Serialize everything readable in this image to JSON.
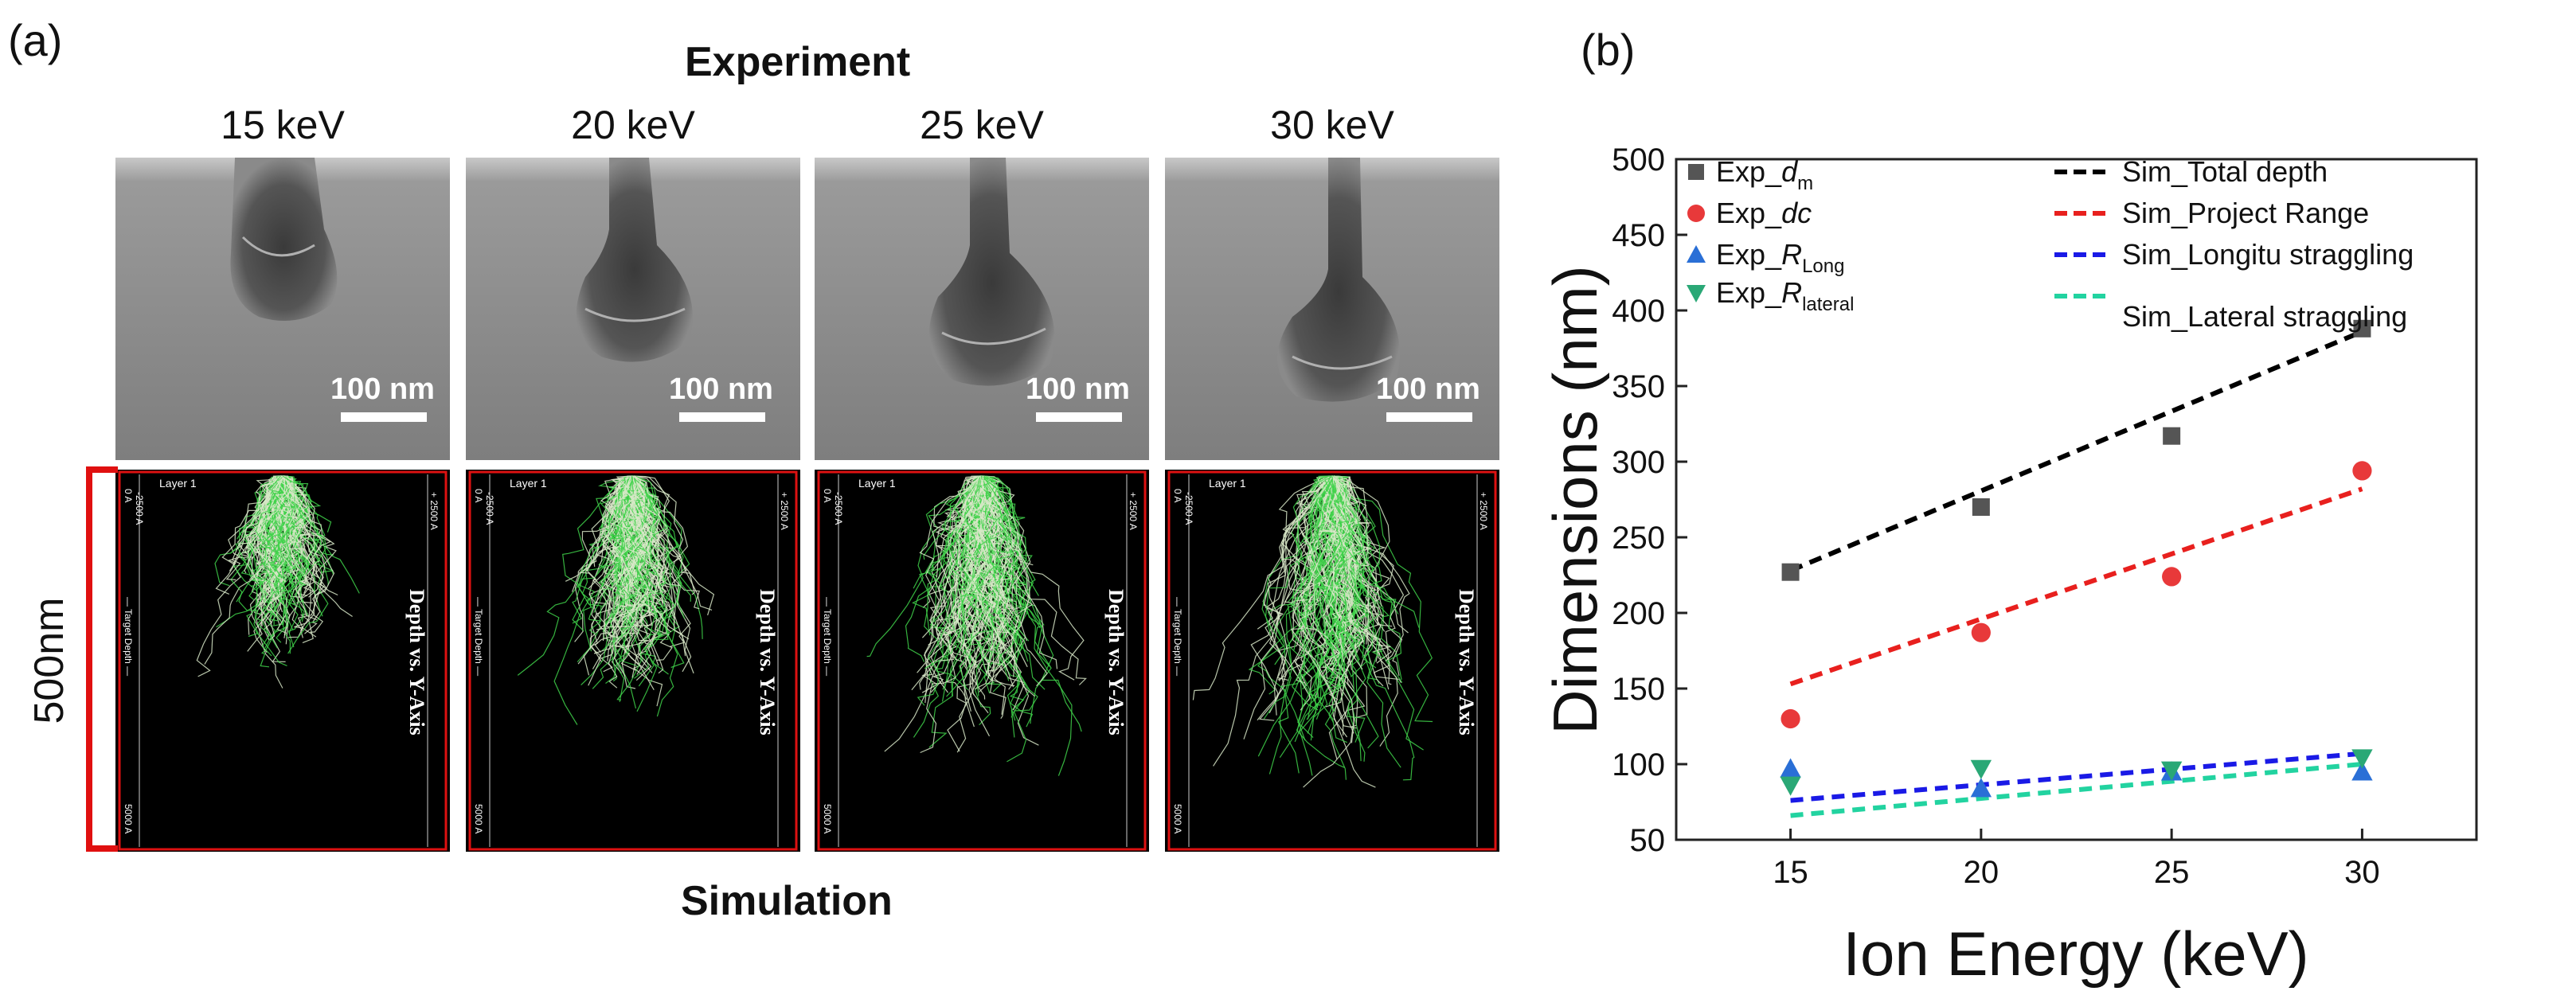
{
  "panel_a": {
    "label": "(a)",
    "top_heading": "Experiment",
    "bottom_heading": "Simulation",
    "energies": [
      "15 keV",
      "20 keV",
      "25 keV",
      "30 keV"
    ],
    "scale_bar_label": "100 nm",
    "side_scale_label": "500nm",
    "sim_plot": {
      "layer": "Layer 1",
      "y_title": "Depth vs. Y-Axis",
      "target_depth": "— Target Depth —",
      "tick_top": "0 A",
      "tick_bottom": "5000 A",
      "tick_left": "-2500 A",
      "tick_right": "+ 2500 A"
    }
  },
  "panel_b": {
    "label": "(b)"
  },
  "chart_data": {
    "type": "scatter",
    "xlabel": "Ion Energy (keV)",
    "ylabel": "Dimensions (nm)",
    "x_ticks": [
      "15",
      "20",
      "25",
      "30"
    ],
    "y_ticks": [
      "50",
      "100",
      "150",
      "200",
      "250",
      "300",
      "350",
      "400",
      "450",
      "500"
    ],
    "xlim": [
      12,
      33
    ],
    "ylim": [
      50,
      500
    ],
    "series": [
      {
        "name": "Exp_d",
        "sub": "m",
        "marker": "square",
        "color": "#555555",
        "x": [
          15,
          20,
          25,
          30
        ],
        "y": [
          227,
          270,
          317,
          388
        ]
      },
      {
        "name": "Exp_dc",
        "sub": "",
        "marker": "circle",
        "color": "#e8393a",
        "x": [
          15,
          20,
          25,
          30
        ],
        "y": [
          130,
          187,
          224,
          294
        ]
      },
      {
        "name": "Exp_R",
        "sub": "Long",
        "marker": "triangle-up",
        "color": "#2a6fd6",
        "x": [
          15,
          20,
          25,
          30
        ],
        "y": [
          97,
          84,
          95,
          95
        ]
      },
      {
        "name": "Exp_R",
        "sub": "lateral",
        "marker": "triangle-down",
        "color": "#2aa876",
        "x": [
          15,
          20,
          25,
          30
        ],
        "y": [
          86,
          97,
          96,
          104
        ]
      }
    ],
    "lines": [
      {
        "name": "Sim_Total depth",
        "color": "#000000",
        "x": [
          15,
          30
        ],
        "y": [
          228,
          386
        ]
      },
      {
        "name": "Sim_Project Range",
        "color": "#e8201e",
        "x": [
          15,
          30
        ],
        "y": [
          153,
          282
        ]
      },
      {
        "name": "Sim_Longitu straggling",
        "color": "#1a1ae6",
        "x": [
          15,
          30
        ],
        "y": [
          76,
          107
        ]
      },
      {
        "name": "Sim_Lateral straggling",
        "color": "#22d3a0",
        "x": [
          15,
          30
        ],
        "y": [
          66,
          100
        ]
      }
    ]
  }
}
